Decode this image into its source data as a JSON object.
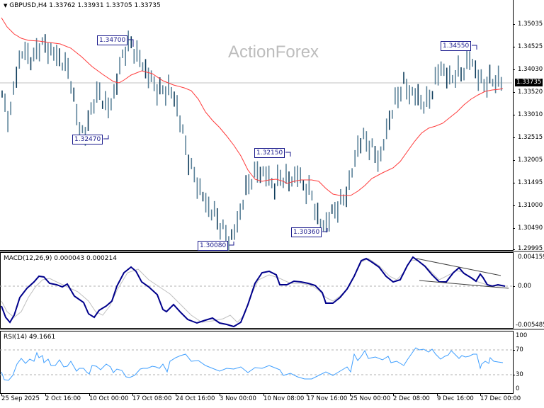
{
  "header": {
    "symbol_line": "GBPUSD,H4  1.33762 1.33931 1.33705 1.33735",
    "symbol": "GBPUSD",
    "timeframe": "H4",
    "open": "1.33762",
    "high": "1.33931",
    "low": "1.33705",
    "close": "1.33735"
  },
  "watermark": "ActionForex",
  "price_axis": {
    "labels": [
      "1.35035",
      "1.34525",
      "1.34030",
      "1.33520",
      "1.33010",
      "1.32515",
      "1.32005",
      "1.31495",
      "1.31000",
      "1.30490",
      "1.29995"
    ],
    "current_price": "1.33735"
  },
  "annotations": [
    {
      "label": "1.34700"
    },
    {
      "label": "1.32470"
    },
    {
      "label": "1.32150"
    },
    {
      "label": "1.30080"
    },
    {
      "label": "1.30360"
    },
    {
      "label": "1.34550"
    }
  ],
  "macd": {
    "title": "MACD(12,26,9) 0.000043 0.000214",
    "axis_labels": [
      "0.004159",
      "0.00",
      "-0.005485"
    ]
  },
  "rsi": {
    "title": "RSI(14) 49.1661",
    "axis_labels": [
      "100",
      "70",
      "30",
      "0"
    ]
  },
  "time_axis": {
    "labels": [
      "25 Sep 2025",
      "2 Oct 16:00",
      "10 Oct 00:00",
      "17 Oct 08:00",
      "24 Oct 16:00",
      "3 Nov 00:00",
      "10 Nov 08:00",
      "17 Nov 16:00",
      "25 Nov 00:00",
      "2 Dec 08:00",
      "9 Dec 16:00",
      "17 Dec 00:00"
    ]
  },
  "colors": {
    "bars": "#5b8299",
    "bars_dark": "#0f3d5c",
    "ma": "#ff3b3b",
    "macd": "#00008b",
    "signal": "#c0c0c0",
    "rsi": "#3f9fff",
    "annotation": "#1a1a8c"
  },
  "chart_data": [
    {
      "type": "line",
      "title": "GBPUSD,H4",
      "subtitle": "1.33762 1.33931 1.33705 1.33735",
      "series": [
        {
          "name": "Price (H4 bars, approx close)",
          "values": [
            1.334,
            1.329,
            1.341,
            1.3445,
            1.342,
            1.346,
            1.345,
            1.3435,
            1.342,
            1.339,
            1.328,
            1.3255,
            1.333,
            1.335,
            1.331,
            1.336,
            1.344,
            1.346,
            1.343,
            1.34,
            1.337,
            1.335,
            1.336,
            1.333,
            1.325,
            1.318,
            1.314,
            1.31,
            1.308,
            1.305,
            1.3015,
            1.305,
            1.312,
            1.316,
            1.3175,
            1.3165,
            1.314,
            1.3165,
            1.315,
            1.317,
            1.314,
            1.312,
            1.305,
            1.306,
            1.309,
            1.3105,
            1.315,
            1.323,
            1.325,
            1.322,
            1.32,
            1.328,
            1.333,
            1.337,
            1.335,
            1.334,
            1.332,
            1.336,
            1.341,
            1.338,
            1.339,
            1.34,
            1.343,
            1.338,
            1.337,
            1.338,
            1.3373
          ]
        },
        {
          "name": "Moving Average",
          "values": [
            1.3495,
            1.346,
            1.344,
            1.3435,
            1.3425,
            1.34,
            1.3385,
            1.3375,
            1.3365,
            1.335,
            1.334,
            1.33,
            1.324,
            1.318,
            1.315,
            1.315,
            1.315,
            1.315,
            1.314,
            1.312,
            1.3115,
            1.314,
            1.318,
            1.322,
            1.327,
            1.33,
            1.332,
            1.334,
            1.335,
            1.3355
          ]
        }
      ],
      "annotations": [
        "1.34700",
        "1.32470",
        "1.32150",
        "1.30080",
        "1.30360",
        "1.34550"
      ],
      "current_price": 1.33735,
      "xlabel": "",
      "ylabel": "",
      "ylim": [
        1.29995,
        1.35035
      ],
      "x_tick_labels": [
        "25 Sep 2025",
        "2 Oct 16:00",
        "10 Oct 00:00",
        "17 Oct 08:00",
        "24 Oct 16:00",
        "3 Nov 00:00",
        "10 Nov 08:00",
        "17 Nov 16:00",
        "25 Nov 00:00",
        "2 Dec 08:00",
        "9 Dec 16:00",
        "17 Dec 00:00"
      ],
      "y_tick_labels": [
        "1.35035",
        "1.34525",
        "1.34030",
        "1.33520",
        "1.33010",
        "1.32515",
        "1.32005",
        "1.31495",
        "1.31000",
        "1.30490",
        "1.29995"
      ]
    },
    {
      "type": "line",
      "title": "MACD(12,26,9) 0.000043 0.000214",
      "series": [
        {
          "name": "MACD",
          "values": [
            -0.0025,
            -0.0045,
            -0.001,
            0.001,
            0.002,
            0.0008,
            0.0005,
            -0.0005,
            -0.002,
            -0.0035,
            -0.002,
            -0.0015,
            -0.0018,
            0.0005,
            0.0028,
            0.0035,
            0.002,
            -0.0003,
            -0.0008,
            -0.0006,
            -0.001,
            -0.0035,
            -0.0045,
            -0.0035,
            -0.0048,
            -0.001,
            0.0022,
            0.0005,
            0.0002,
            -0.0001,
            -0.003,
            -0.002,
            0.0005,
            0.0038,
            0.002,
            0.0005,
            0.0038,
            0.002,
            0.0005,
            0.0018,
            0.001,
            0.0012,
            0.0002,
            0.0001
          ]
        },
        {
          "name": "Signal",
          "values": [
            -0.002,
            -0.0035,
            -0.002,
            0.0005,
            0.0015,
            0.001,
            0.0007,
            0.0,
            -0.0015,
            -0.003,
            -0.0025,
            -0.0018,
            -0.0015,
            0.0,
            0.002,
            0.003,
            0.0025,
            0.0005,
            -0.0005,
            -0.0007,
            -0.0008,
            -0.0025,
            -0.004,
            -0.004,
            -0.0045,
            -0.002,
            0.0012,
            0.001,
            0.0004,
            0.0,
            -0.002,
            -0.0022,
            0.0,
            0.003,
            0.0028,
            0.001,
            0.003,
            0.0028,
            0.001,
            0.0015,
            0.0012,
            0.001,
            0.0004,
            0.0002
          ]
        }
      ],
      "annotations": [
        "Upper trendline (declining highs)",
        "Lower trendline (declining lows)"
      ],
      "ylim": [
        -0.005485,
        0.004159
      ],
      "y_tick_labels": [
        "0.004159",
        "0.00",
        "-0.005485"
      ]
    },
    {
      "type": "line",
      "title": "RSI(14) 49.1661",
      "series": [
        {
          "name": "RSI(14)",
          "values": [
            35,
            28,
            40,
            55,
            52,
            57,
            62,
            54,
            58,
            48,
            50,
            46,
            42,
            38,
            40,
            48,
            44,
            52,
            60,
            65,
            58,
            55,
            52,
            48,
            44,
            50,
            46,
            52,
            44,
            36,
            32,
            30,
            38,
            32,
            28,
            36,
            45,
            48,
            40,
            44,
            36,
            32,
            28,
            26,
            38,
            42,
            44,
            60,
            64,
            56,
            58,
            54,
            52,
            62,
            70,
            66,
            58,
            54,
            58,
            56,
            46,
            60,
            68,
            60,
            58,
            56,
            48,
            55,
            52,
            49
          ]
        }
      ],
      "ylim": [
        0,
        100
      ],
      "y_tick_labels": [
        "100",
        "70",
        "30",
        "0"
      ],
      "reference_lines": [
        70,
        30
      ]
    }
  ]
}
